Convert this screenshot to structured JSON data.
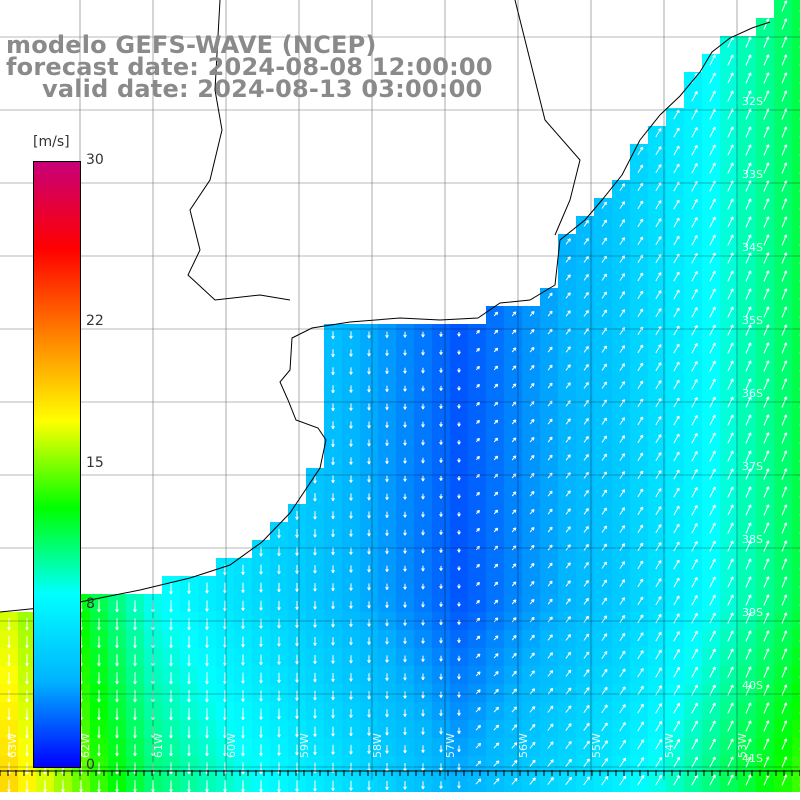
{
  "header": {
    "title": "modelo GEFS-WAVE (NCEP)",
    "forecast": "forecast date: 2024-08-08 12:00:00",
    "valid": "valid date: 2024-08-13 03:00:00"
  },
  "colorbar": {
    "unit": "[m/s]",
    "ticks": [
      {
        "value": 30,
        "label": "30"
      },
      {
        "value": 22,
        "label": "22"
      },
      {
        "value": 15,
        "label": "15"
      },
      {
        "value": 8,
        "label": "8"
      },
      {
        "value": 0,
        "label": "0"
      }
    ],
    "range": [
      0,
      30
    ],
    "stops": [
      "#0000ff",
      "#00b4ff",
      "#00ffff",
      "#00ff00",
      "#ffff00",
      "#ff8000",
      "#ff0000",
      "#c80078"
    ]
  },
  "map": {
    "latitude_labels": [
      "32S",
      "33S",
      "34S",
      "35S",
      "36S",
      "37S",
      "38S",
      "39S",
      "40S",
      "41S"
    ],
    "longitude_labels": [
      "63W",
      "62W",
      "61W",
      "60W",
      "59W",
      "58W",
      "57W",
      "56W",
      "55W",
      "54W",
      "53W"
    ],
    "land_color": "#ffffff",
    "coast_color": "#000000",
    "grid_color": "#000000",
    "vector_color": "#ffffff"
  }
}
